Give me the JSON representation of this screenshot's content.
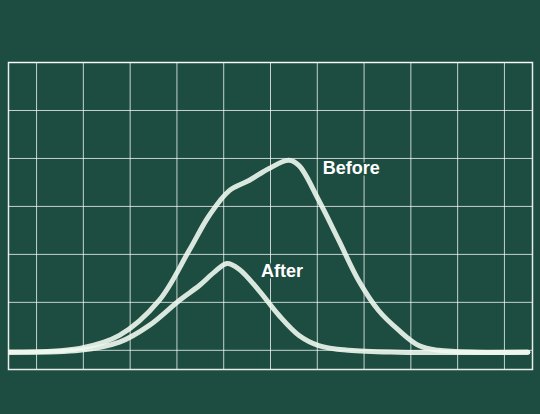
{
  "chart_data": {
    "type": "line",
    "xlim": [
      -0.6,
      10.6
    ],
    "ylim": [
      -0.4,
      6
    ],
    "xticks": [
      0,
      1,
      2,
      3,
      4,
      5,
      6,
      7,
      8,
      9,
      10
    ],
    "yticks": [
      0,
      1,
      2,
      3,
      4,
      5,
      6
    ],
    "grid": true,
    "tick_labels": false,
    "series": [
      {
        "name": "Before",
        "color": "#eef8f0",
        "x": [
          -0.58,
          0.92,
          1.77,
          2.62,
          3.26,
          3.69,
          4.12,
          4.54,
          4.97,
          5.39,
          5.61,
          6.03,
          6.46,
          6.88,
          7.31,
          7.74,
          8.17,
          8.59,
          9.45,
          10.5
        ],
        "values": [
          -0.04,
          0.04,
          0.31,
          1.04,
          2.08,
          2.81,
          3.33,
          3.54,
          3.79,
          3.96,
          3.85,
          3.13,
          2.29,
          1.46,
          0.83,
          0.42,
          0.1,
          0.0,
          -0.04,
          -0.04
        ]
      },
      {
        "name": "After",
        "color": "#eef8f0",
        "x": [
          -0.58,
          0.92,
          1.77,
          2.41,
          3.05,
          3.48,
          3.8,
          4.07,
          4.33,
          4.75,
          5.18,
          5.61,
          6.03,
          6.67,
          7.74,
          10.5
        ],
        "values": [
          -0.04,
          0.0,
          0.17,
          0.52,
          1.04,
          1.35,
          1.63,
          1.81,
          1.69,
          1.25,
          0.73,
          0.31,
          0.1,
          0.0,
          -0.04,
          -0.04
        ]
      }
    ]
  }
}
